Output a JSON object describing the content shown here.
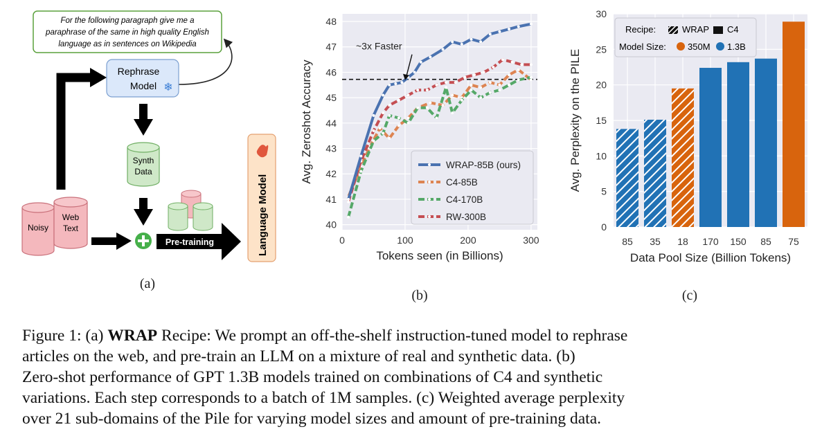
{
  "panel_a": {
    "prompt_text": [
      "For the following paragraph give me a",
      "paraphrase of the same in high quality English",
      "language as in sentences on Wikipedia"
    ],
    "rephrase_model": [
      "Rephrase",
      "Model"
    ],
    "synth_data": [
      "Synth",
      "Data"
    ],
    "noisy_label": "Noisy",
    "web_text": [
      "Web",
      "Text"
    ],
    "pretraining_label": "Pre-training",
    "language_model_label": "Language Model",
    "sublabel": "(a)",
    "colors": {
      "model_box": "#dbe8fa",
      "synth": "#cfe8c8",
      "noisy": "#f4b8bd",
      "lm_box": "#fde3c8",
      "prompt_border": "#5aa03c",
      "plus": "#46b04a"
    }
  },
  "panel_b": {
    "annotation": "~3x Faster",
    "sublabel": "(b)"
  },
  "panel_c": {
    "sublabel": "(c)",
    "legend": {
      "recipe_label": "Recipe:",
      "wrap_label": "WRAP",
      "c4_label": "C4",
      "size_label": "Model Size:",
      "small_label": "350M",
      "large_label": "1.3B"
    }
  },
  "caption": {
    "prefix": "Figure 1: (a) ",
    "bold": "WRAP",
    "line1_rest": " Recipe: We prompt an off-the-shelf instruction-tuned model to rephrase",
    "line2": "articles on the web, and pre-train an LLM on a mixture of real and synthetic data.   (b)",
    "line3": "Zero-shot performance of GPT 1.3B models trained on combinations of C4 and synthetic",
    "line4": "variations. Each step corresponds to a batch of 1M samples. (c) Weighted average perplexity",
    "line5": "over 21 sub-domains of the Pile for varying model sizes and amount of pre-training data."
  },
  "chart_data": [
    {
      "type": "line",
      "xlabel": "Tokens seen (in Billions)",
      "ylabel": "Avg. Zeroshot Accuracy",
      "xlim": [
        0,
        310
      ],
      "ylim": [
        39.8,
        48.3
      ],
      "xticks": [
        0,
        100,
        200,
        300
      ],
      "yticks": [
        40,
        41,
        42,
        43,
        44,
        45,
        46,
        47,
        48
      ],
      "grid": true,
      "legend_position": "lower-right",
      "reference_line": 45.72,
      "series": [
        {
          "name": "WRAP-85B (ours)",
          "color": "#4a72b0",
          "x": [
            10,
            30,
            50,
            65,
            75,
            85,
            95,
            105,
            115,
            125,
            140,
            160,
            175,
            190,
            205,
            220,
            235,
            250,
            265,
            280,
            300
          ],
          "y": [
            41.0,
            42.7,
            44.3,
            45.1,
            45.5,
            45.55,
            45.6,
            45.8,
            46.0,
            46.4,
            46.6,
            46.9,
            47.2,
            47.1,
            47.3,
            47.2,
            47.5,
            47.6,
            47.7,
            47.8,
            47.9
          ]
        },
        {
          "name": "C4-85B",
          "color": "#dd8452",
          "x": [
            10,
            30,
            45,
            60,
            75,
            90,
            105,
            120,
            140,
            160,
            175,
            190,
            205,
            220,
            235,
            250,
            265,
            280,
            300
          ],
          "y": [
            41.1,
            42.3,
            43.1,
            43.8,
            43.4,
            43.9,
            44.2,
            44.6,
            44.8,
            44.7,
            45.1,
            45.0,
            45.5,
            45.4,
            45.6,
            45.5,
            45.9,
            46.1,
            45.7
          ]
        },
        {
          "name": "C4-170B",
          "color": "#55a868",
          "x": [
            10,
            30,
            50,
            65,
            75,
            90,
            105,
            120,
            135,
            150,
            165,
            175,
            190,
            205,
            220,
            235,
            250,
            265,
            280,
            300
          ],
          "y": [
            40.3,
            42.1,
            43.3,
            43.6,
            44.3,
            44.2,
            44.0,
            44.6,
            44.6,
            44.2,
            45.4,
            44.4,
            44.9,
            45.3,
            45.0,
            45.2,
            45.3,
            45.5,
            45.7,
            45.8
          ]
        },
        {
          "name": "RW-300B",
          "color": "#c44e52",
          "x": [
            10,
            30,
            50,
            65,
            75,
            90,
            105,
            120,
            135,
            150,
            165,
            180,
            195,
            210,
            225,
            240,
            255,
            270,
            285,
            300
          ],
          "y": [
            40.9,
            42.5,
            43.7,
            44.4,
            44.7,
            44.9,
            45.1,
            45.3,
            45.3,
            45.5,
            45.6,
            45.6,
            45.8,
            45.9,
            46.0,
            46.2,
            46.5,
            46.4,
            46.3,
            46.3
          ]
        }
      ]
    },
    {
      "type": "bar",
      "xlabel": "Data Pool Size (Billion Tokens)",
      "ylabel": "Avg. Perplexity on the PILE",
      "ylim": [
        0,
        30
      ],
      "yticks": [
        0,
        5,
        10,
        15,
        20,
        25,
        30
      ],
      "grid": true,
      "legend_position": "top-left",
      "categories": [
        "85",
        "35",
        "18",
        "170",
        "150",
        "85",
        "75"
      ],
      "values": [
        13.8,
        15.1,
        19.5,
        22.4,
        23.2,
        23.7,
        28.9
      ],
      "recipe": [
        "WRAP",
        "WRAP",
        "WRAP",
        "C4",
        "C4",
        "C4",
        "C4"
      ],
      "model_size": [
        "1.3B",
        "1.3B",
        "350M",
        "1.3B",
        "1.3B",
        "1.3B",
        "350M"
      ],
      "colors": {
        "1.3B": "#2172b5",
        "350M": "#d8640d"
      }
    }
  ]
}
